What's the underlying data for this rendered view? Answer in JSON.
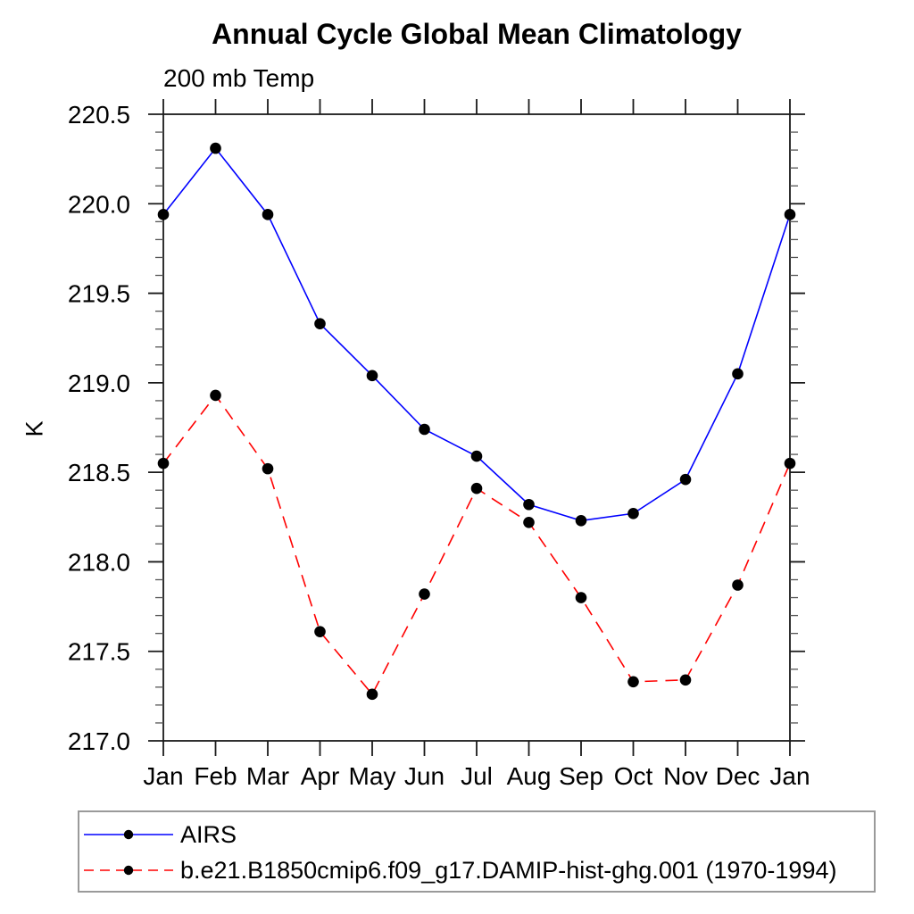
{
  "title": "Annual Cycle Global Mean Climatology",
  "subtitle": "200 mb Temp",
  "y_axis_label": "K",
  "legend": {
    "entries": [
      {
        "label": "AIRS",
        "color": "#0000ff",
        "style": "solid"
      },
      {
        "label": "b.e21.B1850cmip6.f09_g17.DAMIP-hist-ghg.001 (1970-1994)",
        "color": "#ff0000",
        "style": "dashed"
      }
    ]
  },
  "chart_data": {
    "type": "line",
    "title": "Annual Cycle Global Mean Climatology",
    "subtitle": "200 mb Temp",
    "xlabel": "",
    "ylabel": "K",
    "categories": [
      "Jan",
      "Feb",
      "Mar",
      "Apr",
      "May",
      "Jun",
      "Jul",
      "Aug",
      "Sep",
      "Oct",
      "Nov",
      "Dec",
      "Jan"
    ],
    "series": [
      {
        "name": "AIRS",
        "color": "#0000ff",
        "line_style": "solid",
        "marker": "filled-circle",
        "marker_color": "#000000",
        "values": [
          219.94,
          220.31,
          219.94,
          219.33,
          219.04,
          218.74,
          218.59,
          218.32,
          218.23,
          218.27,
          218.46,
          219.05,
          219.94
        ]
      },
      {
        "name": "b.e21.B1850cmip6.f09_g17.DAMIP-hist-ghg.001 (1970-1994)",
        "color": "#ff0000",
        "line_style": "dashed",
        "marker": "filled-circle",
        "marker_color": "#000000",
        "values": [
          218.55,
          218.93,
          218.52,
          217.61,
          217.26,
          217.82,
          218.41,
          218.22,
          217.8,
          217.33,
          217.34,
          217.87,
          218.55
        ]
      }
    ],
    "ylim": [
      217.0,
      220.5
    ],
    "y_major_step": 0.5,
    "y_minor_step": 0.1,
    "y_tick_labels": [
      "217.0",
      "217.5",
      "218.0",
      "218.5",
      "219.0",
      "219.5",
      "220.0",
      "220.5"
    ],
    "grid": false,
    "legend_position": "bottom-left"
  }
}
